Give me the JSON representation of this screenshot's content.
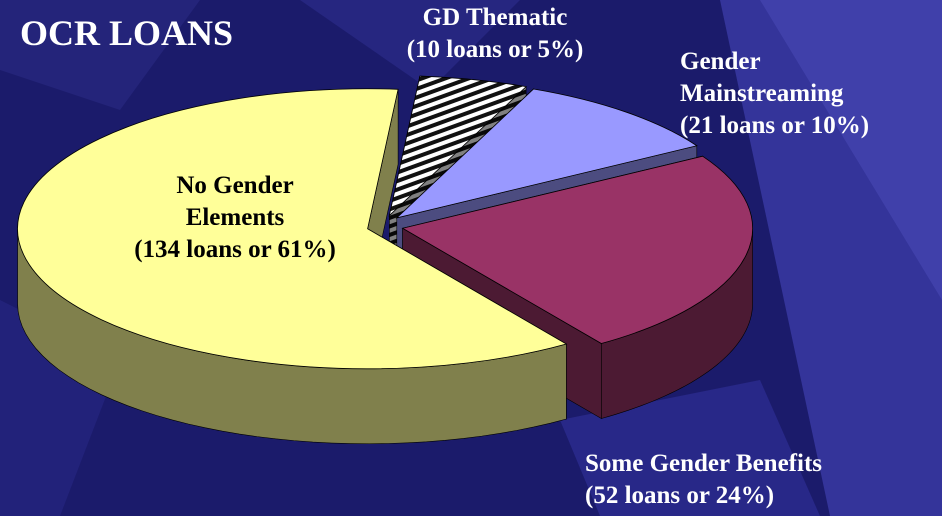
{
  "chart_data": {
    "type": "pie",
    "title": "OCR LOANS",
    "categories": [
      "No Gender Elements",
      "GD Thematic",
      "Gender Mainstreaming",
      "Some Gender Benefits"
    ],
    "values": [
      61,
      5,
      10,
      24
    ],
    "value_labels": [
      "(134 loans or 61%)",
      "(10 loans or 5%)",
      "(21 loans or 10%)",
      "(52 loans or 24%)"
    ],
    "colors": [
      "#ffff99",
      "url(#stripes)",
      "#9999ff",
      "#993366"
    ]
  }
}
